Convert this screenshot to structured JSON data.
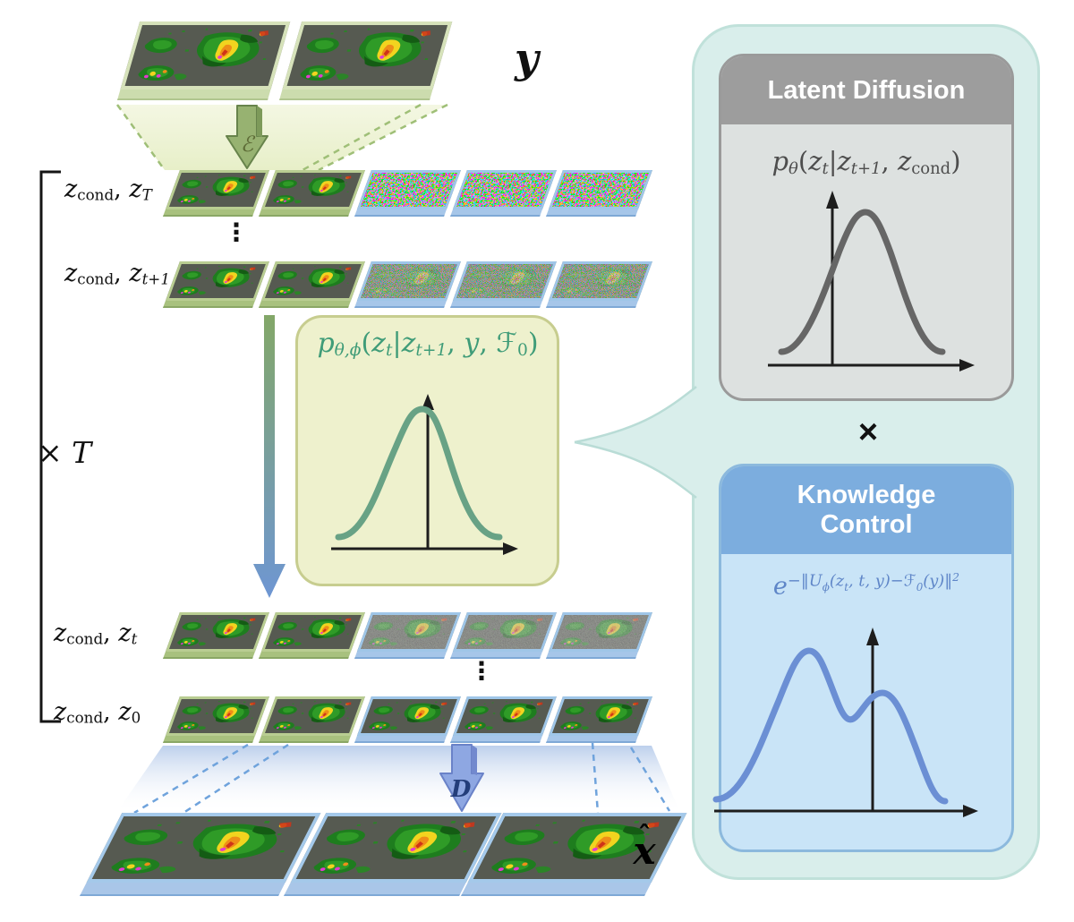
{
  "figure": {
    "kind": "latent-diffusion-nowcasting-diagram",
    "dots_glyph": "⋮",
    "left": {
      "y_label": [
        {
          "s": "n",
          "t": "y"
        }
      ],
      "xhat": {
        "hat": "ˆ",
        "base": "x"
      },
      "encoder_label": "ℰ",
      "decoder_label": "D",
      "times_T": [
        {
          "s": "u",
          "t": "× "
        },
        {
          "s": "n",
          "t": "T"
        }
      ],
      "row_labels": {
        "zT": [
          {
            "s": "n",
            "t": "z"
          },
          {
            "s": "subu",
            "t": "cond"
          },
          {
            "s": "u",
            "t": ", "
          },
          {
            "s": "n",
            "t": "z"
          },
          {
            "s": "sub",
            "t": "T"
          }
        ],
        "zt1": [
          {
            "s": "n",
            "t": "z"
          },
          {
            "s": "subu",
            "t": "cond"
          },
          {
            "s": "u",
            "t": ", "
          },
          {
            "s": "n",
            "t": "z"
          },
          {
            "s": "sub",
            "t": "t+1"
          }
        ],
        "zt": [
          {
            "s": "n",
            "t": "z"
          },
          {
            "s": "subu",
            "t": "cond"
          },
          {
            "s": "u",
            "t": ", "
          },
          {
            "s": "n",
            "t": "z"
          },
          {
            "s": "sub",
            "t": "t"
          }
        ],
        "z0": [
          {
            "s": "n",
            "t": "z"
          },
          {
            "s": "subu",
            "t": "cond"
          },
          {
            "s": "u",
            "t": ", "
          },
          {
            "s": "n",
            "t": "z"
          },
          {
            "s": "subu",
            "t": "0"
          }
        ]
      },
      "posterior_formula": [
        {
          "s": "n",
          "t": "p"
        },
        {
          "s": "sub",
          "t": "θ,ϕ"
        },
        {
          "s": "u",
          "t": "("
        },
        {
          "s": "n",
          "t": "z"
        },
        {
          "s": "sub",
          "t": "t"
        },
        {
          "s": "u",
          "t": "|"
        },
        {
          "s": "n",
          "t": "z"
        },
        {
          "s": "sub",
          "t": "t+1"
        },
        {
          "s": "u",
          "t": ", "
        },
        {
          "s": "n",
          "t": "y"
        },
        {
          "s": "u",
          "t": ", "
        },
        {
          "s": "u",
          "t": "ℱ"
        },
        {
          "s": "subu",
          "t": "0"
        },
        {
          "s": "u",
          "t": ")"
        }
      ]
    },
    "right": {
      "latent_diffusion": {
        "title": "Latent Diffusion",
        "formula": [
          {
            "s": "n",
            "t": "p"
          },
          {
            "s": "sub",
            "t": "θ"
          },
          {
            "s": "u",
            "t": "("
          },
          {
            "s": "n",
            "t": "z"
          },
          {
            "s": "sub",
            "t": "t"
          },
          {
            "s": "u",
            "t": "|"
          },
          {
            "s": "n",
            "t": "z"
          },
          {
            "s": "sub",
            "t": "t+1"
          },
          {
            "s": "u",
            "t": ", "
          },
          {
            "s": "n",
            "t": "z"
          },
          {
            "s": "subu",
            "t": "cond"
          },
          {
            "s": "u",
            "t": ")"
          }
        ],
        "plot": {
          "type": "line",
          "shape": "gaussian-unimodal",
          "curve_color": "#686868",
          "axis_color": "#1d1d1d"
        }
      },
      "multiply_symbol": "×",
      "knowledge_control": {
        "title_line1": "Knowledge",
        "title_line2": "Control",
        "formula": [
          {
            "s": "n",
            "t": "e"
          },
          {
            "s": "sup",
            "t": "−‖U"
          },
          {
            "s": "supsub",
            "t": "ϕ"
          },
          {
            "s": "sup",
            "t": "(z"
          },
          {
            "s": "supsub",
            "t": "t"
          },
          {
            "s": "sup",
            "t": ", t, y)−ℱ"
          },
          {
            "s": "supsub",
            "t": "0"
          },
          {
            "s": "sup",
            "t": "(y)‖"
          },
          {
            "s": "sup2",
            "t": "2"
          }
        ],
        "plot": {
          "type": "line",
          "shape": "bimodal",
          "curve_color": "#6b8fd4",
          "axis_color": "#1d1d1d"
        }
      }
    },
    "posterior_plot": {
      "type": "line",
      "shape": "gaussian-unimodal",
      "curve_color": "#68a285",
      "axis_color": "#1d1d1d"
    },
    "colors": {
      "cond_frame_green": "#b9cd92",
      "latent_frame_blue": "#9fc6e8",
      "posterior_box_bg": "#eef1cd",
      "posterior_formula_green": "#3f9c78",
      "right_panel_teal": "#d9eeeb",
      "gray_header": "#9d9d9d",
      "blue_header": "#7cadde",
      "knowledge_formula_blue": "#5f86c8",
      "encoder_arrow_green": "#97b271",
      "decoder_arrow_blue": "#8ea7e2",
      "radar_bg": "#565a51"
    }
  }
}
